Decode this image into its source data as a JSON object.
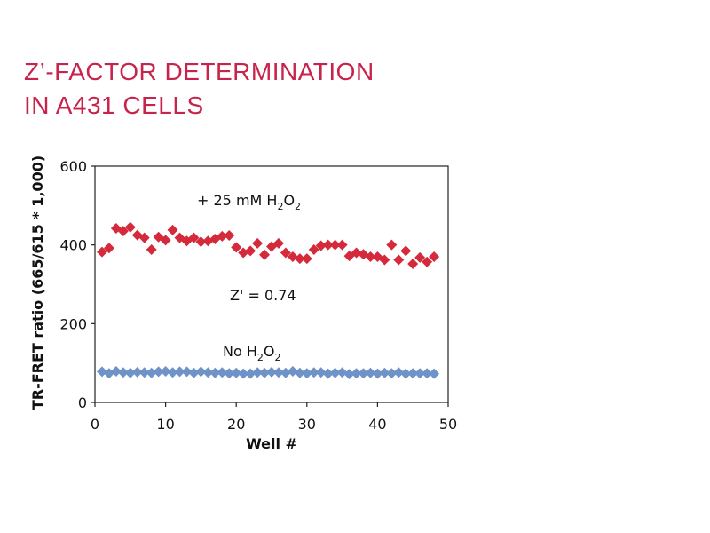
{
  "title": {
    "line1": "Z’-FACTOR DETERMINATION",
    "line2": "IN A431 CELLS"
  },
  "chart_data": {
    "type": "scatter",
    "xlabel": "Well #",
    "ylabel": "TR-FRET ratio (665/615 * 1,000)",
    "xlim": [
      0,
      50
    ],
    "ylim": [
      0,
      600
    ],
    "xticks": [
      0,
      10,
      20,
      30,
      40,
      50
    ],
    "yticks": [
      0,
      200,
      400,
      600
    ],
    "grid": false,
    "annotations": {
      "upper": {
        "prefix": "+ 25 mM  H",
        "sub1": "2",
        "mid": "O",
        "sub2": "2"
      },
      "zfactor": "Z' = 0.74",
      "lower": {
        "prefix": "No H",
        "sub1": "2",
        "mid": "O",
        "sub2": "2"
      }
    },
    "series": [
      {
        "color": "#d42a3c",
        "marker": "diamond",
        "x": [
          1,
          2,
          3,
          4,
          5,
          6,
          7,
          8,
          9,
          10,
          11,
          12,
          13,
          14,
          15,
          16,
          17,
          18,
          19,
          20,
          21,
          22,
          23,
          24,
          25,
          26,
          27,
          28,
          29,
          30,
          31,
          32,
          33,
          34,
          35,
          36,
          37,
          38,
          39,
          40,
          41,
          42,
          43,
          44,
          45,
          46,
          47,
          48
        ],
        "values": [
          382,
          392,
          442,
          435,
          445,
          425,
          418,
          388,
          420,
          412,
          438,
          418,
          410,
          418,
          408,
          410,
          415,
          422,
          424,
          394,
          380,
          385,
          404,
          375,
          396,
          404,
          380,
          370,
          365,
          365,
          388,
          398,
          400,
          400,
          400,
          372,
          380,
          376,
          370,
          370,
          362,
          400,
          362,
          385,
          352,
          368,
          357,
          370
        ]
      },
      {
        "color": "#6f93c8",
        "marker": "diamond",
        "x": [
          1,
          2,
          3,
          4,
          5,
          6,
          7,
          8,
          9,
          10,
          11,
          12,
          13,
          14,
          15,
          16,
          17,
          18,
          19,
          20,
          21,
          22,
          23,
          24,
          25,
          26,
          27,
          28,
          29,
          30,
          31,
          32,
          33,
          34,
          35,
          36,
          37,
          38,
          39,
          40,
          41,
          42,
          43,
          44,
          45,
          46,
          47,
          48
        ],
        "values": [
          78,
          74,
          79,
          76,
          75,
          77,
          76,
          75,
          78,
          79,
          76,
          78,
          78,
          75,
          78,
          76,
          75,
          76,
          74,
          75,
          73,
          73,
          76,
          75,
          77,
          76,
          75,
          79,
          75,
          74,
          76,
          76,
          73,
          75,
          76,
          72,
          74,
          74,
          75,
          73,
          75,
          74,
          76,
          73,
          74,
          74,
          74,
          73
        ]
      }
    ]
  }
}
